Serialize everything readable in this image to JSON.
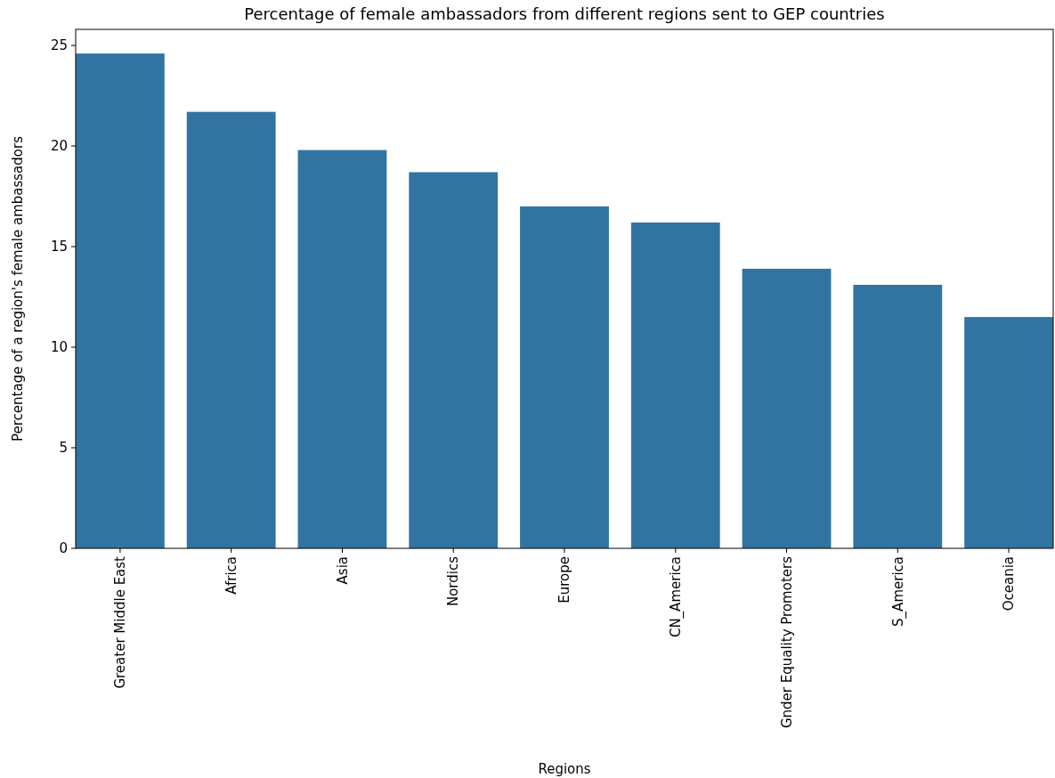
{
  "chart_data": {
    "type": "bar",
    "title": "Percentage of female ambassadors from different regions sent to GEP countries",
    "xlabel": "Regions",
    "ylabel": "Percentage of a region's female ambassadors",
    "categories": [
      "Greater Middle East",
      "Africa",
      "Asia",
      "Nordics",
      "Europe",
      "CN_America",
      "Gnder Equality Promoters",
      "S_America",
      "Oceania"
    ],
    "values": [
      24.6,
      21.7,
      19.8,
      18.7,
      17.0,
      16.2,
      13.9,
      13.1,
      11.5
    ],
    "color": "#3274a1",
    "ylim": [
      0,
      25.8
    ],
    "yticks": [
      0,
      5,
      10,
      15,
      20,
      25
    ],
    "grid": false
  }
}
